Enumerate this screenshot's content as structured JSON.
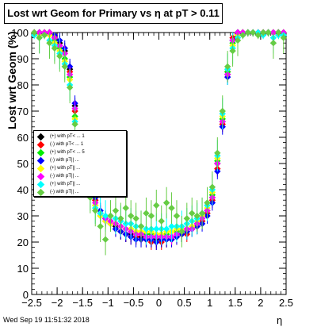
{
  "header": {
    "title": "Lost wrt Geom for Primary vs   η at pT > 0.11"
  },
  "footer": {
    "timestamp": "Wed Sep 19 11:51:32 2018"
  },
  "legend": {
    "entries": [
      {
        "label": "(+) with pT< ... 1",
        "color": "#000000"
      },
      {
        "label": "(-) with pT< ... 1",
        "color": "#ff0000"
      },
      {
        "label": "(+) with pT< ... 5",
        "color": "#00ee00"
      },
      {
        "label": "(-) with pT|| ...",
        "color": "#0000ff"
      },
      {
        "label": "(+) with pT|| ...",
        "color": "#ffff00"
      },
      {
        "label": "(-) with pT|| ...",
        "color": "#ff00ff"
      },
      {
        "label": "(+) with pT|| ...",
        "color": "#00ffff"
      },
      {
        "label": "(-) with pT|| ...",
        "color": "#66cc44"
      }
    ]
  },
  "chart_data": {
    "type": "scatter",
    "title": "Lost wrt Geom for Primary vs   η at pT > 0.11",
    "xlabel": "η",
    "ylabel": "Lost wrt Geom (%)",
    "xlim": [
      -2.5,
      2.5
    ],
    "ylim": [
      0,
      100
    ],
    "xticks": [
      "−2.5",
      "−2",
      "−1.5",
      "−1",
      "−0.5",
      "0",
      "0.5",
      "1",
      "1.5",
      "2",
      "2.5"
    ],
    "xtick_values": [
      -2.5,
      -2,
      -1.5,
      -1,
      -0.5,
      0,
      0.5,
      1,
      1.5,
      2,
      2.5
    ],
    "yticks": [
      "0",
      "10",
      "20",
      "30",
      "40",
      "50",
      "60",
      "70",
      "80",
      "90",
      "100"
    ],
    "ytick_values": [
      0,
      10,
      20,
      30,
      40,
      50,
      60,
      70,
      80,
      90,
      100
    ],
    "grid": false,
    "legend_position": "middle-left",
    "x": [
      -2.45,
      -2.35,
      -2.25,
      -2.15,
      -2.05,
      -1.95,
      -1.85,
      -1.75,
      -1.65,
      -1.55,
      -1.45,
      -1.35,
      -1.25,
      -1.15,
      -1.05,
      -0.95,
      -0.85,
      -0.75,
      -0.65,
      -0.55,
      -0.45,
      -0.35,
      -0.25,
      -0.15,
      -0.05,
      0.05,
      0.15,
      0.25,
      0.35,
      0.45,
      0.55,
      0.65,
      0.75,
      0.85,
      0.95,
      1.05,
      1.15,
      1.25,
      1.35,
      1.45,
      1.55,
      1.65,
      1.75,
      1.85,
      1.95,
      2.05,
      2.15,
      2.25,
      2.35,
      2.45
    ],
    "series": [
      {
        "name": "(+) with pT< ... 1",
        "color": "#000000",
        "values": [
          100,
          100,
          100,
          100,
          98,
          96,
          93,
          86,
          72,
          58,
          50,
          42,
          36,
          31,
          29,
          27,
          26,
          24,
          23,
          23,
          22,
          22,
          21,
          21,
          21,
          21,
          21,
          22,
          22,
          23,
          24,
          25,
          26,
          28,
          31,
          37,
          50,
          66,
          84,
          97,
          100,
          100,
          100,
          100,
          100,
          100,
          100,
          100,
          100,
          100
        ]
      },
      {
        "name": "(-) with pT< ... 1",
        "color": "#ff0000",
        "values": [
          100,
          100,
          100,
          100,
          99,
          95,
          92,
          85,
          70,
          57,
          49,
          41,
          36,
          31,
          28,
          27,
          25,
          24,
          23,
          22,
          22,
          21,
          21,
          20,
          20,
          20,
          21,
          21,
          22,
          23,
          23,
          25,
          26,
          28,
          31,
          36,
          48,
          65,
          85,
          98,
          100,
          100,
          100,
          100,
          100,
          100,
          100,
          100,
          100,
          100
        ]
      },
      {
        "name": "(+) with pT< ... 5",
        "color": "#00ee00",
        "values": [
          100,
          100,
          100,
          100,
          97,
          94,
          90,
          83,
          68,
          56,
          48,
          40,
          34,
          30,
          29,
          28,
          27,
          26,
          25,
          25,
          24,
          24,
          23,
          23,
          23,
          23,
          23,
          24,
          24,
          24,
          25,
          26,
          27,
          29,
          32,
          38,
          51,
          67,
          85,
          96,
          100,
          100,
          100,
          100,
          100,
          100,
          100,
          100,
          100,
          100
        ]
      },
      {
        "name": "(-) with pT|| ...",
        "color": "#0000ff",
        "values": [
          100,
          100,
          100,
          100,
          99,
          97,
          94,
          87,
          73,
          59,
          51,
          43,
          37,
          32,
          29,
          27,
          25,
          24,
          23,
          22,
          21,
          21,
          21,
          21,
          20,
          21,
          21,
          21,
          22,
          23,
          24,
          25,
          26,
          27,
          30,
          35,
          47,
          64,
          83,
          97,
          100,
          100,
          100,
          100,
          100,
          100,
          100,
          100,
          100,
          100
        ]
      },
      {
        "name": "(+) with pT|| ...",
        "color": "#ffff00",
        "values": [
          100,
          99,
          100,
          99,
          96,
          93,
          89,
          82,
          67,
          55,
          47,
          39,
          34,
          30,
          28,
          27,
          27,
          26,
          25,
          25,
          24,
          24,
          24,
          24,
          23,
          23,
          24,
          24,
          25,
          25,
          25,
          26,
          28,
          30,
          33,
          39,
          52,
          68,
          86,
          95,
          99,
          100,
          100,
          100,
          100,
          100,
          100,
          100,
          99,
          100
        ]
      },
      {
        "name": "(-) with pT|| ...",
        "color": "#ff00ff",
        "values": [
          100,
          100,
          100,
          100,
          98,
          95,
          92,
          84,
          71,
          57,
          49,
          41,
          35,
          31,
          29,
          28,
          27,
          26,
          25,
          24,
          23,
          23,
          22,
          22,
          22,
          22,
          22,
          22,
          23,
          24,
          25,
          25,
          27,
          29,
          32,
          37,
          50,
          66,
          84,
          97,
          100,
          100,
          100,
          100,
          100,
          100,
          100,
          100,
          100,
          100
        ]
      },
      {
        "name": "(+) with pT|| ...",
        "color": "#00ffff",
        "values": [
          99,
          98,
          99,
          97,
          95,
          92,
          88,
          80,
          66,
          54,
          46,
          38,
          33,
          31,
          30,
          30,
          29,
          28,
          27,
          27,
          26,
          26,
          25,
          25,
          25,
          25,
          25,
          26,
          26,
          26,
          27,
          28,
          29,
          31,
          34,
          40,
          53,
          69,
          86,
          94,
          98,
          99,
          100,
          100,
          100,
          99,
          100,
          98,
          99,
          99
        ]
      },
      {
        "name": "(-) with pT|| ...",
        "color": "#66cc44",
        "values": [
          100,
          98,
          99,
          96,
          94,
          91,
          87,
          79,
          65,
          53,
          45,
          37,
          32,
          26,
          21,
          30,
          32,
          29,
          33,
          30,
          29,
          26,
          31,
          30,
          34,
          28,
          35,
          33,
          30,
          24,
          29,
          31,
          30,
          31,
          35,
          41,
          54,
          70,
          87,
          93,
          97,
          99,
          100,
          100,
          99,
          100,
          100,
          96,
          100,
          98
        ]
      }
    ]
  }
}
